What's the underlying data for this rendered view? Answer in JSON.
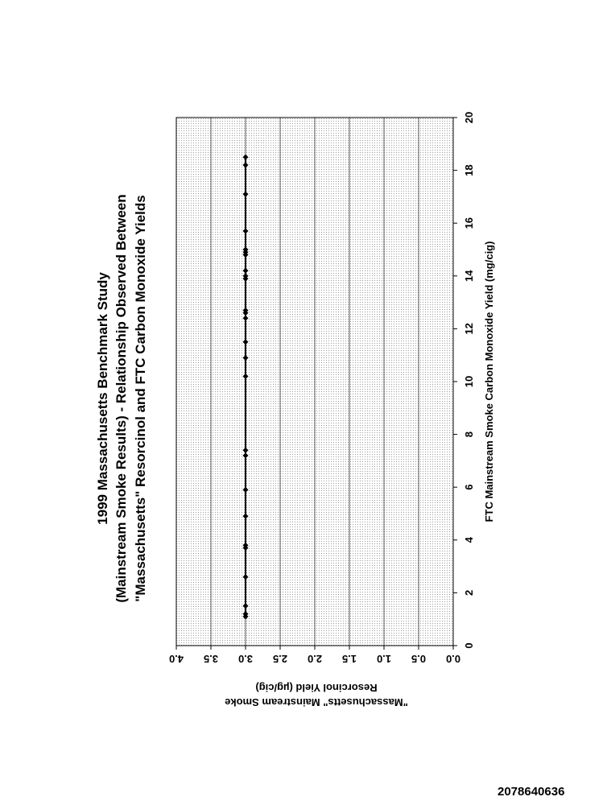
{
  "chart_data": {
    "type": "scatter",
    "title": [
      "1999 Massachusetts Benchmark Study",
      "(Mainstream Smoke Results) - Relationship Observed Between",
      "\"Massachusetts\" Resorcinol and FTC Carbon Monoxide Yields"
    ],
    "xlabel": "FTC Mainstream Smoke Carbon Monoxide Yield (mg/cig)",
    "ylabel": [
      "\"Massachusetts\" Mainstream Smoke",
      "Resorcinol Yield (µg/cig)"
    ],
    "xlim": [
      0,
      20
    ],
    "ylim": [
      0.0,
      4.0
    ],
    "x_ticks": [
      "0",
      "2",
      "4",
      "6",
      "8",
      "10",
      "12",
      "14",
      "16",
      "18",
      "20"
    ],
    "y_ticks": [
      "0.0",
      "0.5",
      "1.0",
      "1.5",
      "2.0",
      "2.5",
      "3.0",
      "3.5",
      "4.0"
    ],
    "grid": true,
    "rotation": "chart rotated 90° counter-clockwise on page",
    "x": [
      1.1,
      1.2,
      1.5,
      2.6,
      3.7,
      3.8,
      4.9,
      5.9,
      7.2,
      7.4,
      10.2,
      10.9,
      11.5,
      12.4,
      12.6,
      12.7,
      13.9,
      14.0,
      14.2,
      14.8,
      14.9,
      15.0,
      15.7,
      17.1,
      18.2,
      18.5
    ],
    "y": [
      3.0,
      3.0,
      3.0,
      3.0,
      3.0,
      3.0,
      3.0,
      3.0,
      3.0,
      3.0,
      3.0,
      3.0,
      3.0,
      3.0,
      3.0,
      3.0,
      3.0,
      3.0,
      3.0,
      3.0,
      3.0,
      3.0,
      3.0,
      3.0,
      3.0,
      3.0
    ],
    "trendline": {
      "x": [
        1.1,
        18.5
      ],
      "y": [
        3.0,
        3.0
      ]
    }
  },
  "document_id": "2078640636"
}
